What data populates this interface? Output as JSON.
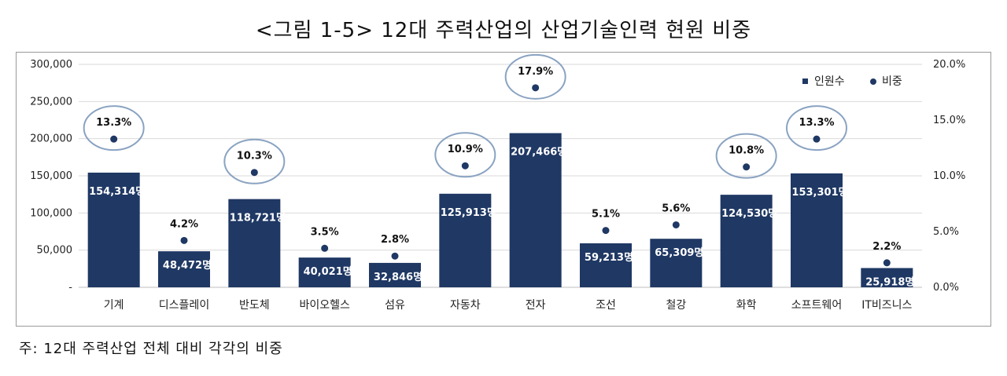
{
  "title": "<그림 1-5> 12대 주력산업의 산업기술인력 현원 비중",
  "note": "주: 12대 주력산업 전체 대비 각각의 비중",
  "chart_data": {
    "type": "bar",
    "categories": [
      "기계",
      "디스플레이",
      "반도체",
      "바이오헬스",
      "섬유",
      "자동차",
      "전자",
      "조선",
      "철강",
      "화학",
      "소프트웨어",
      "IT비즈니스"
    ],
    "series": [
      {
        "name": "인원수",
        "type": "bar",
        "axis": "left",
        "values": [
          154314,
          48472,
          118721,
          40021,
          32846,
          125913,
          207466,
          59213,
          65309,
          124530,
          153301,
          25918
        ],
        "labels": [
          "154,314명",
          "48,472명",
          "118,721명",
          "40,021명",
          "32,846명",
          "125,913명",
          "207,466명",
          "59,213명",
          "65,309명",
          "124,530명",
          "153,301명",
          "25,918명"
        ],
        "color": "#1f3864"
      },
      {
        "name": "비중",
        "type": "scatter",
        "axis": "right",
        "values": [
          13.3,
          4.2,
          10.3,
          3.5,
          2.8,
          10.9,
          17.9,
          5.1,
          5.6,
          10.8,
          13.3,
          2.2
        ],
        "labels": [
          "13.3%",
          "4.2%",
          "10.3%",
          "3.5%",
          "2.8%",
          "10.9%",
          "17.9%",
          "5.1%",
          "5.6%",
          "10.8%",
          "13.3%",
          "2.2%"
        ],
        "color": "#1f3864",
        "circled": [
          true,
          false,
          true,
          false,
          false,
          true,
          true,
          false,
          false,
          true,
          true,
          false
        ]
      }
    ],
    "y_left": {
      "ylim": [
        0,
        300000
      ],
      "ticks": [
        0,
        50000,
        100000,
        150000,
        200000,
        250000,
        300000
      ],
      "tick_labels": [
        "-",
        "50,000",
        "100,000",
        "150,000",
        "200,000",
        "250,000",
        "300,000"
      ]
    },
    "y_right": {
      "ylim": [
        0,
        20
      ],
      "ticks": [
        0,
        5,
        10,
        15,
        20
      ],
      "tick_labels": [
        "0.0%",
        "5.0%",
        "10.0%",
        "15.0%",
        "20.0%"
      ]
    },
    "grid": true,
    "legend": "top-right",
    "circle_color": "#8aa3c2"
  }
}
